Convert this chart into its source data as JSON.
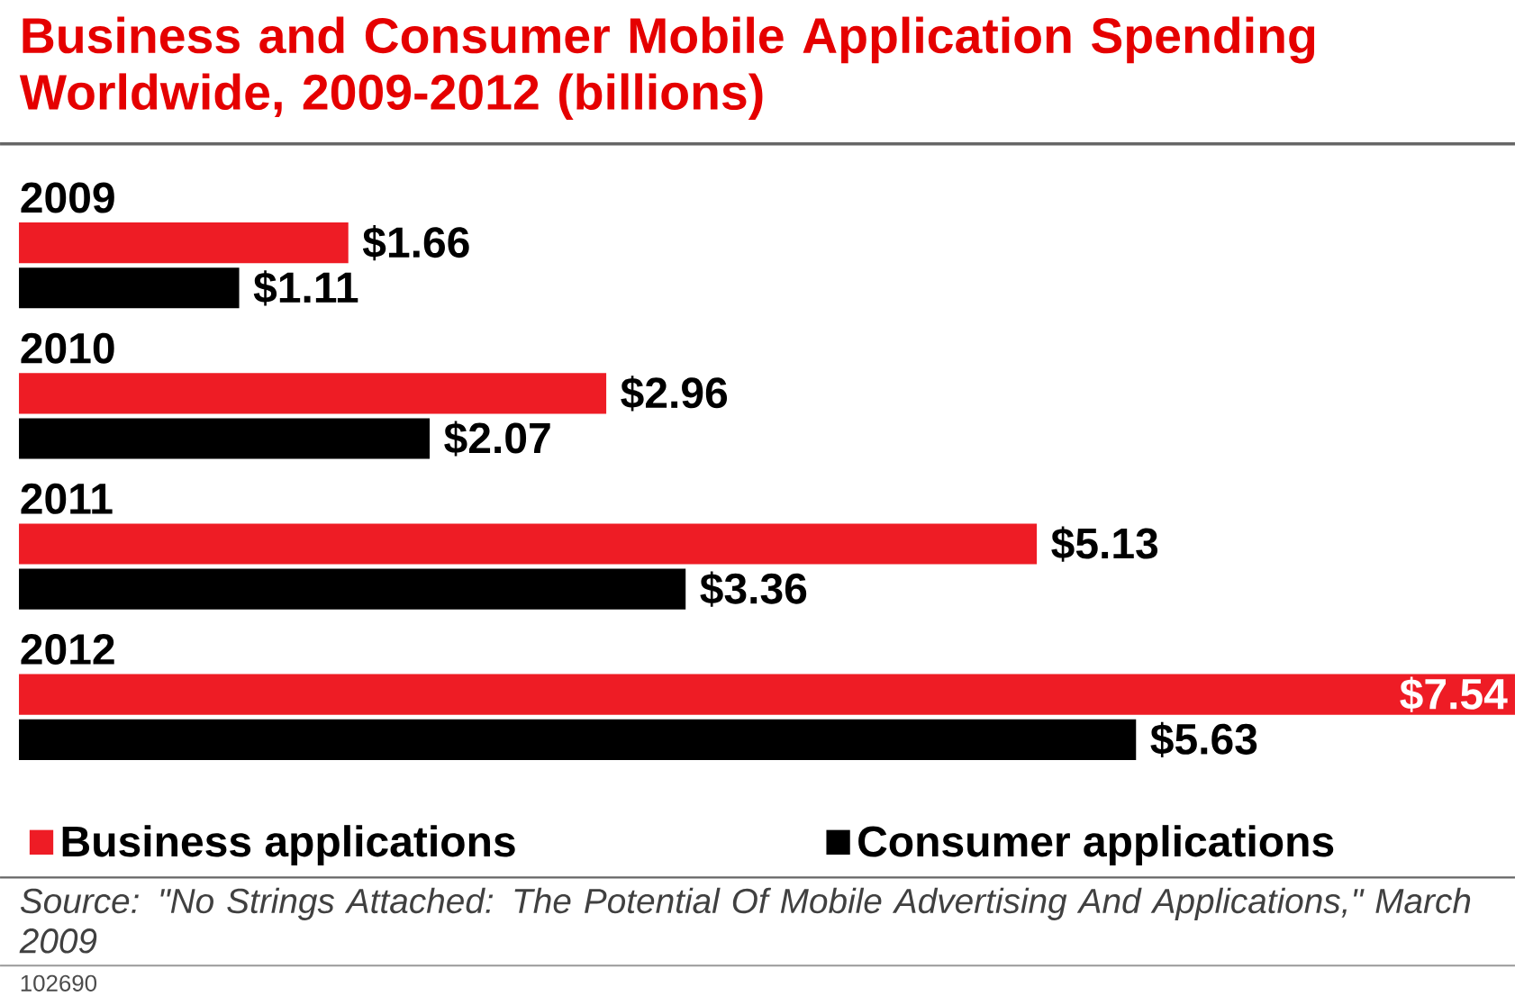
{
  "chart_data": {
    "type": "bar",
    "orientation": "horizontal",
    "title": "Business and Consumer Mobile Application Spending Worldwide, 2009-2012 (billions)",
    "categories": [
      "2009",
      "2010",
      "2011",
      "2012"
    ],
    "series": [
      {
        "name": "Business applications",
        "color": "#ee1c25",
        "values": [
          1.66,
          2.96,
          5.13,
          7.54
        ],
        "value_labels": [
          "$1.66",
          "$2.96",
          "$5.13",
          "$7.54"
        ]
      },
      {
        "name": "Consumer applications",
        "color": "#000000",
        "values": [
          1.11,
          2.07,
          3.36,
          5.63
        ],
        "value_labels": [
          "$1.11",
          "$2.07",
          "$3.36",
          "$5.63"
        ]
      }
    ],
    "legend": "bottom",
    "annotations": [
      "Source: \"No Strings Attached: The Potential Of Mobile Advertising And Applications,\" March 2009",
      "102690"
    ]
  }
}
